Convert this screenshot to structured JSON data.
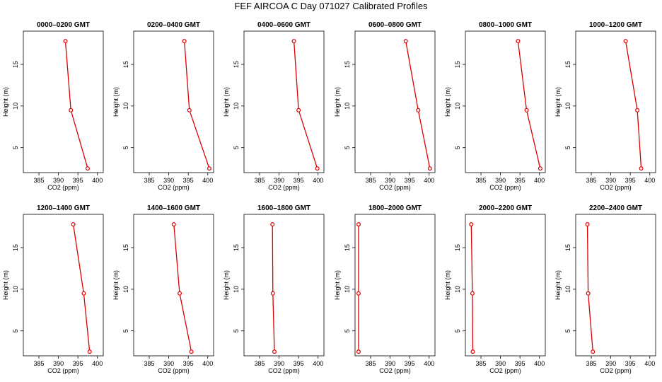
{
  "title": "FEF AIRCOA C  Day 071027  Calibrated Profiles",
  "colors": {
    "line": "#dd0000",
    "point": "#dd0000",
    "axis": "#000000"
  },
  "chart_data": [
    {
      "type": "line",
      "title": "0000–0200 GMT",
      "xlabel": "CO2 (ppm)",
      "ylabel": "Height (m)",
      "xlim": [
        381,
        401.5
      ],
      "ylim": [
        2,
        19
      ],
      "xticks": [
        385,
        390,
        395,
        400
      ],
      "yticks": [
        5,
        10,
        15
      ],
      "x": [
        391.8,
        393.2,
        397.5
      ],
      "y": [
        17.8,
        9.5,
        2.5
      ]
    },
    {
      "type": "line",
      "title": "0200–0400 GMT",
      "xlabel": "CO2 (ppm)",
      "ylabel": "Height (m)",
      "xlim": [
        381,
        401.5
      ],
      "ylim": [
        2,
        19
      ],
      "xticks": [
        385,
        390,
        395,
        400
      ],
      "yticks": [
        5,
        10,
        15
      ],
      "x": [
        394.0,
        395.3,
        400.4
      ],
      "y": [
        17.8,
        9.5,
        2.5
      ]
    },
    {
      "type": "line",
      "title": "0400–0600 GMT",
      "xlabel": "CO2 (ppm)",
      "ylabel": "Height (m)",
      "xlim": [
        381,
        401.5
      ],
      "ylim": [
        2,
        19
      ],
      "xticks": [
        385,
        390,
        395,
        400
      ],
      "yticks": [
        5,
        10,
        15
      ],
      "x": [
        393.8,
        395.0,
        399.8
      ],
      "y": [
        17.8,
        9.5,
        2.5
      ]
    },
    {
      "type": "line",
      "title": "0600–0800 GMT",
      "xlabel": "CO2 (ppm)",
      "ylabel": "Height (m)",
      "xlim": [
        381,
        401.5
      ],
      "ylim": [
        2,
        19
      ],
      "xticks": [
        385,
        390,
        395,
        400
      ],
      "yticks": [
        5,
        10,
        15
      ],
      "x": [
        394.0,
        397.2,
        400.2
      ],
      "y": [
        17.8,
        9.5,
        2.5
      ]
    },
    {
      "type": "line",
      "title": "0800–1000 GMT",
      "xlabel": "CO2 (ppm)",
      "ylabel": "Height (m)",
      "xlim": [
        381,
        401.5
      ],
      "ylim": [
        2,
        19
      ],
      "xticks": [
        385,
        390,
        395,
        400
      ],
      "yticks": [
        5,
        10,
        15
      ],
      "x": [
        394.5,
        396.7,
        400.2
      ],
      "y": [
        17.8,
        9.5,
        2.5
      ]
    },
    {
      "type": "line",
      "title": "1000–1200 GMT",
      "xlabel": "CO2 (ppm)",
      "ylabel": "Height (m)",
      "xlim": [
        381,
        401.5
      ],
      "ylim": [
        2,
        19
      ],
      "xticks": [
        385,
        390,
        395,
        400
      ],
      "yticks": [
        5,
        10,
        15
      ],
      "x": [
        393.8,
        396.8,
        397.8
      ],
      "y": [
        17.8,
        9.5,
        2.5
      ]
    },
    {
      "type": "line",
      "title": "1200–1400 GMT",
      "xlabel": "CO2 (ppm)",
      "ylabel": "Height (m)",
      "xlim": [
        381,
        401.5
      ],
      "ylim": [
        2,
        19
      ],
      "xticks": [
        385,
        390,
        395,
        400
      ],
      "yticks": [
        5,
        10,
        15
      ],
      "x": [
        393.8,
        396.5,
        398.0
      ],
      "y": [
        17.8,
        9.5,
        2.5
      ]
    },
    {
      "type": "line",
      "title": "1400–1600 GMT",
      "xlabel": "CO2 (ppm)",
      "ylabel": "Height (m)",
      "xlim": [
        381,
        401.5
      ],
      "ylim": [
        2,
        19
      ],
      "xticks": [
        385,
        390,
        395,
        400
      ],
      "yticks": [
        5,
        10,
        15
      ],
      "x": [
        391.3,
        392.8,
        395.8
      ],
      "y": [
        17.8,
        9.5,
        2.5
      ]
    },
    {
      "type": "line",
      "title": "1600–1800 GMT",
      "xlabel": "CO2 (ppm)",
      "ylabel": "Height (m)",
      "xlim": [
        381,
        401.5
      ],
      "ylim": [
        2,
        19
      ],
      "xticks": [
        385,
        390,
        395,
        400
      ],
      "yticks": [
        5,
        10,
        15
      ],
      "x": [
        388.3,
        388.4,
        388.8
      ],
      "y": [
        17.8,
        9.5,
        2.5
      ]
    },
    {
      "type": "line",
      "title": "1800–2000 GMT",
      "xlabel": "CO2 (ppm)",
      "ylabel": "Height (m)",
      "xlim": [
        381,
        401.5
      ],
      "ylim": [
        2,
        19
      ],
      "xticks": [
        385,
        390,
        395,
        400
      ],
      "yticks": [
        5,
        10,
        15
      ],
      "x": [
        381.9,
        381.9,
        381.9
      ],
      "y": [
        17.8,
        9.5,
        2.5
      ]
    },
    {
      "type": "line",
      "title": "2000–2200 GMT",
      "xlabel": "CO2 (ppm)",
      "ylabel": "Height (m)",
      "xlim": [
        381,
        401.5
      ],
      "ylim": [
        2,
        19
      ],
      "xticks": [
        385,
        390,
        395,
        400
      ],
      "yticks": [
        5,
        10,
        15
      ],
      "x": [
        382.5,
        382.8,
        382.9
      ],
      "y": [
        17.8,
        9.5,
        2.5
      ]
    },
    {
      "type": "line",
      "title": "2200–2400 GMT",
      "xlabel": "CO2 (ppm)",
      "ylabel": "Height (m)",
      "xlim": [
        381,
        401.5
      ],
      "ylim": [
        2,
        19
      ],
      "xticks": [
        385,
        390,
        395,
        400
      ],
      "yticks": [
        5,
        10,
        15
      ],
      "x": [
        384.0,
        384.2,
        385.4
      ],
      "y": [
        17.8,
        9.5,
        2.5
      ]
    }
  ]
}
